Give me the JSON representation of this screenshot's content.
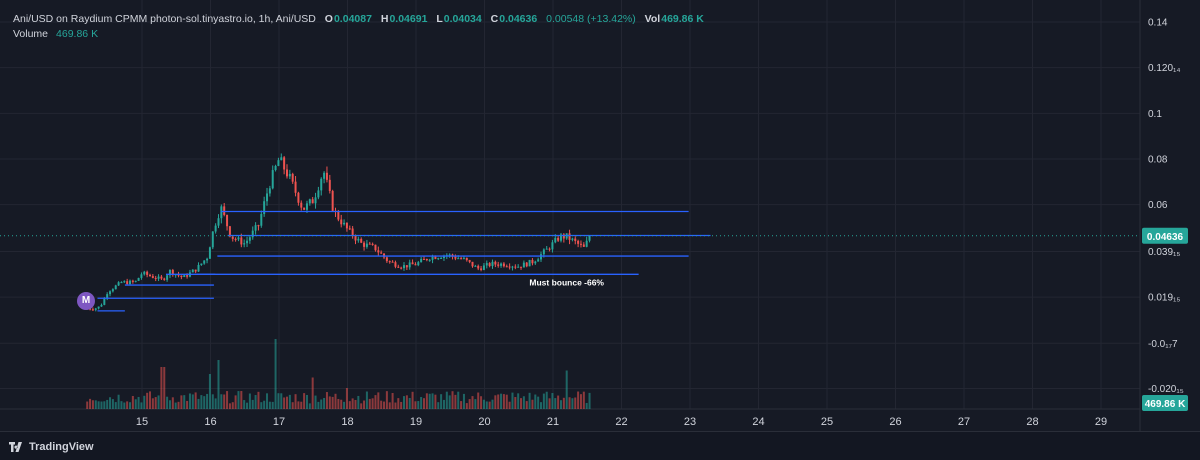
{
  "header": {
    "symbol_line": "Ani/USD on Raydium CPMM photon-sol.tinyastro.io, 1h, Ani/USD",
    "o_label": "O",
    "o_value": "0.04087",
    "h_label": "H",
    "h_value": "0.04691",
    "l_label": "L",
    "l_value": "0.04034",
    "c_label": "C",
    "c_value": "0.04636",
    "change": "0.00548 (+13.42%)",
    "vol_label": "Vol",
    "vol_value": "469.86 K"
  },
  "volume_line": {
    "label": "Volume",
    "value": "469.86 K"
  },
  "badge": {
    "text": "M"
  },
  "annotation": {
    "text": "Must bounce -66%"
  },
  "branding": {
    "text": "TradingView"
  },
  "colors": {
    "up": "#26a69a",
    "down": "#ef5350",
    "level_line": "#2962ff",
    "grid": "#232632",
    "axis_text": "#d1d4dc",
    "badge": "#7e57c2"
  },
  "chart_data": {
    "type": "candlestick",
    "x_ticks": [
      "15",
      "16",
      "17",
      "18",
      "19",
      "20",
      "21",
      "22",
      "23",
      "24",
      "25",
      "26",
      "27",
      "28",
      "29"
    ],
    "y_ticks": [
      "0.14",
      "0.120₁₄",
      "0.1",
      "0.08",
      "0.06",
      "0.039₁₅",
      "0.019₁₅",
      "-0.0₁₇7",
      "-0.020₁₅"
    ],
    "y_tick_values": [
      0.14,
      0.12,
      0.1,
      0.08,
      0.06,
      0.0395,
      0.0195,
      -0.0007,
      -0.0205
    ],
    "ylim": [
      -0.026,
      0.146
    ],
    "xlim": [
      14.0,
      29.45
    ],
    "last_price_label": "0.04636",
    "last_price": 0.04636,
    "volume_label": "469.86 K",
    "closes_anchor": [
      [
        14.2,
        0.0145
      ],
      [
        14.35,
        0.0147
      ],
      [
        14.4,
        0.016
      ],
      [
        14.5,
        0.022
      ],
      [
        14.7,
        0.026
      ],
      [
        14.9,
        0.026
      ],
      [
        15.0,
        0.03
      ],
      [
        15.2,
        0.028
      ],
      [
        15.3,
        0.027
      ],
      [
        15.4,
        0.031
      ],
      [
        15.6,
        0.028
      ],
      [
        15.8,
        0.032
      ],
      [
        15.95,
        0.037
      ],
      [
        16.05,
        0.05
      ],
      [
        16.15,
        0.059
      ],
      [
        16.3,
        0.046
      ],
      [
        16.5,
        0.043
      ],
      [
        16.7,
        0.051
      ],
      [
        16.85,
        0.068
      ],
      [
        17.0,
        0.08
      ],
      [
        17.15,
        0.072
      ],
      [
        17.35,
        0.058
      ],
      [
        17.5,
        0.062
      ],
      [
        17.65,
        0.075
      ],
      [
        17.8,
        0.057
      ],
      [
        18.0,
        0.049
      ],
      [
        18.2,
        0.043
      ],
      [
        18.4,
        0.041
      ],
      [
        18.6,
        0.035
      ],
      [
        18.8,
        0.033
      ],
      [
        19.0,
        0.034
      ],
      [
        19.2,
        0.037
      ],
      [
        19.45,
        0.038
      ],
      [
        19.7,
        0.036
      ],
      [
        19.9,
        0.032
      ],
      [
        20.1,
        0.034
      ],
      [
        20.3,
        0.034
      ],
      [
        20.5,
        0.033
      ],
      [
        20.7,
        0.035
      ],
      [
        20.9,
        0.04
      ],
      [
        21.1,
        0.046
      ],
      [
        21.2,
        0.046
      ],
      [
        21.35,
        0.043
      ],
      [
        21.45,
        0.041
      ],
      [
        21.55,
        0.0466
      ]
    ],
    "volume_spikes": [
      [
        14.1,
        0.5
      ],
      [
        15.3,
        0.6
      ],
      [
        16.0,
        0.5
      ],
      [
        16.1,
        0.7
      ],
      [
        16.95,
        1.0
      ],
      [
        17.5,
        0.45
      ],
      [
        18.0,
        0.3
      ],
      [
        21.2,
        0.55
      ]
    ],
    "levels": [
      {
        "x1": 16.15,
        "x2": 22.98,
        "y": 0.057
      },
      {
        "x1": 16.25,
        "x2": 23.3,
        "y": 0.0465
      },
      {
        "x1": 16.1,
        "x2": 22.98,
        "y": 0.0375
      },
      {
        "x1": 15.8,
        "x2": 22.25,
        "y": 0.0295
      },
      {
        "x1": 15.35,
        "x2": 16.07,
        "y": 0.0295
      },
      {
        "x1": 14.75,
        "x2": 16.05,
        "y": 0.0248
      },
      {
        "x1": 14.35,
        "x2": 16.05,
        "y": 0.019
      },
      {
        "x1": 14.35,
        "x2": 14.75,
        "y": 0.0135
      }
    ]
  }
}
